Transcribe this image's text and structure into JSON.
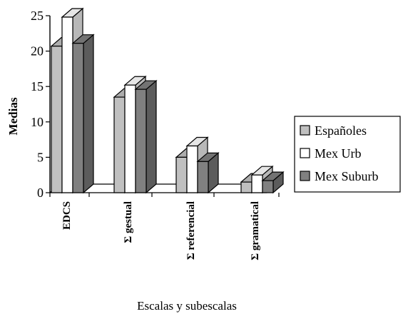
{
  "chart_data": {
    "type": "bar",
    "title": "",
    "xlabel": "Escalas y subescalas",
    "ylabel": "Medias",
    "ylim": [
      0,
      25
    ],
    "yticks": [
      0,
      5,
      10,
      15,
      20,
      25
    ],
    "categories": [
      "EDCS",
      "Σ gestual",
      "Σ referencial",
      "Σ gramatical"
    ],
    "series": [
      {
        "name": "Españoles",
        "color": "#c0c0c0",
        "values": [
          20.7,
          13.5,
          5.0,
          1.5
        ]
      },
      {
        "name": "Mex Urb",
        "color": "#ffffff",
        "values": [
          24.8,
          15.2,
          6.6,
          2.5
        ]
      },
      {
        "name": "Mex Suburb",
        "color": "#808080",
        "values": [
          21.1,
          14.6,
          4.4,
          1.7
        ]
      }
    ],
    "legend_position": "right",
    "style": "3d-columns",
    "grid": false
  }
}
